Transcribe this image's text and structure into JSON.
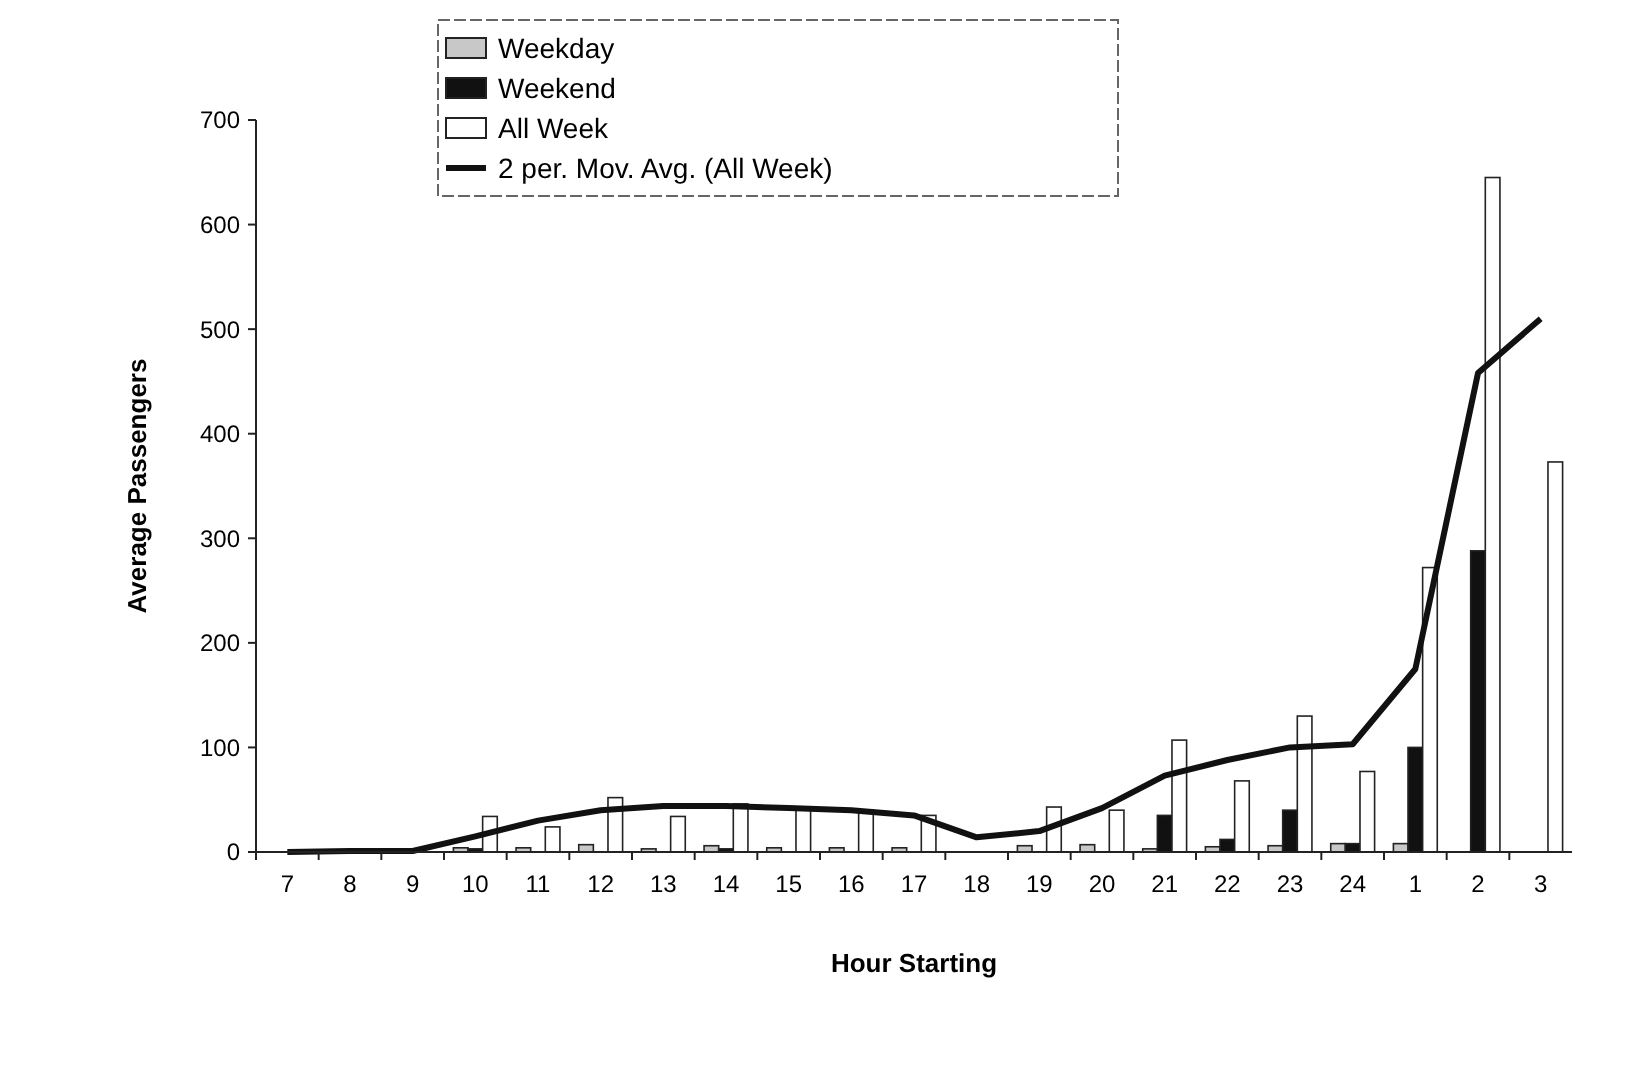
{
  "chart_data": {
    "type": "bar",
    "xlabel": "Hour Starting",
    "ylabel": "Average Passengers",
    "categories": [
      "7",
      "8",
      "9",
      "10",
      "11",
      "12",
      "13",
      "14",
      "15",
      "16",
      "17",
      "18",
      "19",
      "20",
      "21",
      "22",
      "23",
      "24",
      "1",
      "2",
      "3"
    ],
    "series": [
      {
        "name": "Weekday",
        "color": "#c8c8c8",
        "values": [
          0,
          0,
          0,
          4,
          4,
          7,
          3,
          6,
          4,
          4,
          4,
          0,
          6,
          7,
          3,
          5,
          6,
          8,
          8,
          0,
          0
        ]
      },
      {
        "name": "Weekend",
        "color": "#111111",
        "values": [
          0,
          0,
          0,
          3,
          null,
          null,
          null,
          3,
          0,
          0,
          0,
          0,
          0,
          0,
          35,
          12,
          40,
          8,
          100,
          288,
          0
        ]
      },
      {
        "name": "All Week",
        "color": "#ffffff",
        "values": [
          0,
          1,
          0,
          34,
          24,
          52,
          34,
          46,
          40,
          40,
          35,
          0,
          43,
          40,
          107,
          68,
          130,
          77,
          272,
          645,
          373
        ]
      },
      {
        "name": "2 per. Mov. Avg. (All Week)",
        "type": "line",
        "color": "#111111",
        "values": [
          0,
          1,
          1,
          15,
          30,
          40,
          44,
          44,
          42,
          40,
          35,
          14,
          20,
          42,
          73,
          88,
          100,
          103,
          175,
          458,
          510
        ]
      }
    ],
    "ylim": [
      0,
      700
    ],
    "yticks": [
      0,
      100,
      200,
      300,
      400,
      500,
      600,
      700
    ],
    "grid": false,
    "legend": "top",
    "marker": "none",
    "line_style": "solid"
  }
}
